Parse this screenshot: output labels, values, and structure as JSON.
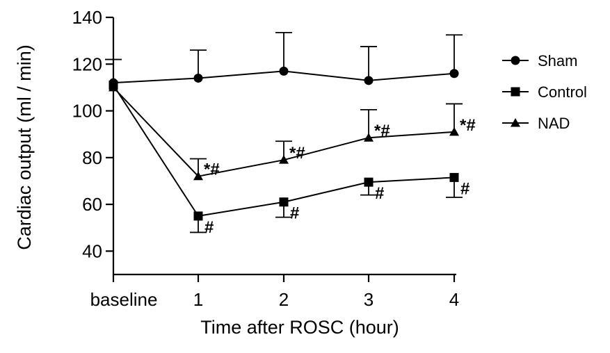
{
  "chart_data": {
    "type": "line",
    "xlabel": "Time after ROSC (hour)",
    "ylabel": "Cardiac output  (ml / min)",
    "categories": [
      "baseline",
      "1",
      "2",
      "3",
      "4"
    ],
    "ylim": [
      30,
      140
    ],
    "yticks": [
      40,
      60,
      80,
      100,
      120,
      140
    ],
    "legend_position": "right",
    "colors": {
      "line": "#000000",
      "marker": "#000000",
      "background": "#ffffff"
    },
    "series": [
      {
        "name": "Sham",
        "marker": "circle",
        "values": [
          112,
          114,
          117,
          113,
          116
        ],
        "error_upper": [
          10,
          12,
          16.5,
          14.5,
          16.5
        ],
        "annotations": [
          "",
          "",
          "",
          "",
          ""
        ]
      },
      {
        "name": "Control",
        "marker": "square",
        "values": [
          111,
          55,
          61,
          69.5,
          71.5
        ],
        "error_lower": [
          0,
          7,
          6.5,
          5.5,
          8.5
        ],
        "annotations": [
          "",
          "#",
          "#",
          "#",
          "#"
        ]
      },
      {
        "name": "NAD",
        "marker": "triangle",
        "values": [
          110,
          72,
          79,
          88.5,
          91
        ],
        "error_upper": [
          0,
          7.5,
          8,
          12,
          12
        ],
        "annotations": [
          "",
          "*#",
          "*#",
          "*#",
          "*#"
        ]
      }
    ]
  }
}
